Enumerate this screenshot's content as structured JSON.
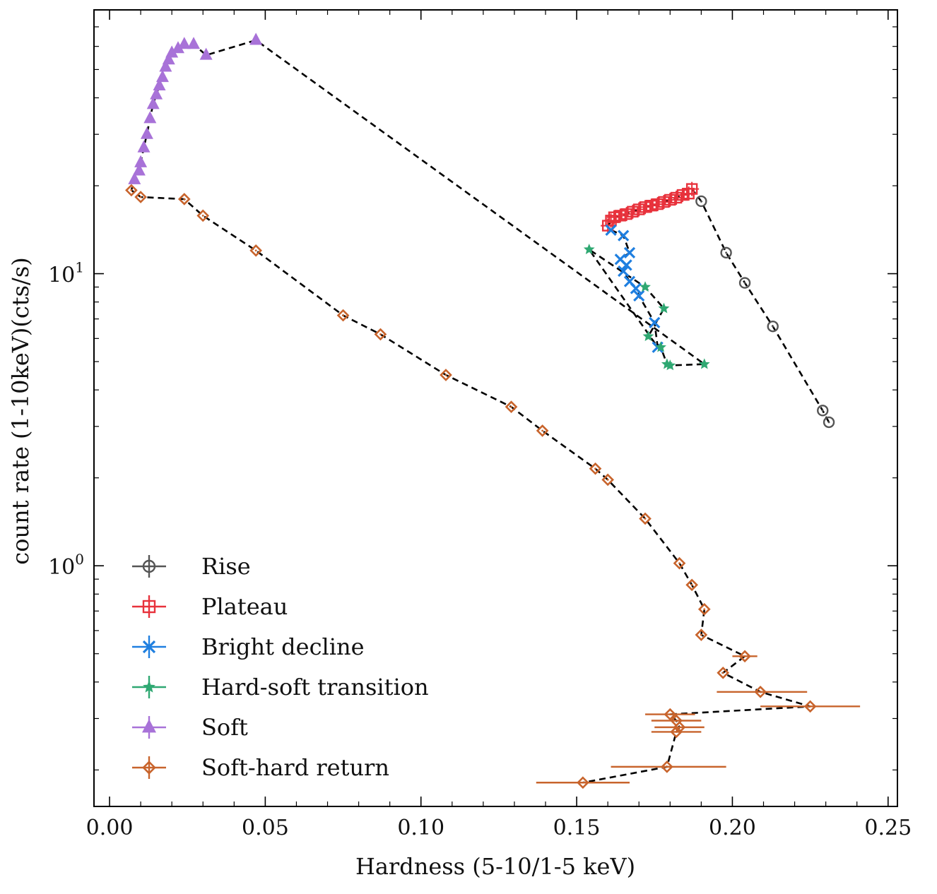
{
  "chart_data": {
    "type": "scatter",
    "title": "",
    "xlabel": "Hardness (5-10/1-5 keV)",
    "ylabel": "count rate (1-10keV)(cts/s)",
    "x_range": [
      -0.005,
      0.253
    ],
    "y_range": [
      0.15,
      80
    ],
    "y_scale": "log",
    "grid": false,
    "legend_position": "lower-left",
    "x_ticks": [
      {
        "value": 0.0,
        "label": "0.00"
      },
      {
        "value": 0.05,
        "label": "0.05"
      },
      {
        "value": 0.1,
        "label": "0.10"
      },
      {
        "value": 0.15,
        "label": "0.15"
      },
      {
        "value": 0.2,
        "label": "0.20"
      },
      {
        "value": 0.25,
        "label": "0.25"
      }
    ],
    "y_ticks": [
      {
        "value": 1,
        "base": "10",
        "exp": "0"
      },
      {
        "value": 10,
        "base": "10",
        "exp": "1"
      }
    ],
    "connecting_line": {
      "style": "dashed",
      "color": "#000000"
    },
    "series": [
      {
        "name": "Rise",
        "marker": "circle",
        "color": "#555555",
        "points": [
          {
            "x": 0.231,
            "y": 3.1
          },
          {
            "x": 0.229,
            "y": 3.4
          },
          {
            "x": 0.213,
            "y": 6.6
          },
          {
            "x": 0.204,
            "y": 9.3
          },
          {
            "x": 0.198,
            "y": 11.8
          },
          {
            "x": 0.19,
            "y": 17.7
          }
        ]
      },
      {
        "name": "Plateau",
        "marker": "square",
        "color": "#e8323c",
        "points": [
          {
            "x": 0.187,
            "y": 19.5
          },
          {
            "x": 0.186,
            "y": 18.8
          },
          {
            "x": 0.184,
            "y": 18.6
          },
          {
            "x": 0.182,
            "y": 18.2
          },
          {
            "x": 0.18,
            "y": 17.9
          },
          {
            "x": 0.178,
            "y": 17.6
          },
          {
            "x": 0.176,
            "y": 17.3
          },
          {
            "x": 0.174,
            "y": 17.1
          },
          {
            "x": 0.172,
            "y": 16.9
          },
          {
            "x": 0.17,
            "y": 16.6
          },
          {
            "x": 0.168,
            "y": 16.3
          },
          {
            "x": 0.166,
            "y": 16.0
          },
          {
            "x": 0.164,
            "y": 15.8
          },
          {
            "x": 0.162,
            "y": 15.6
          },
          {
            "x": 0.161,
            "y": 15.2
          },
          {
            "x": 0.16,
            "y": 14.6
          }
        ]
      },
      {
        "name": "Bright decline",
        "marker": "x",
        "color": "#1f7fe0",
        "points": [
          {
            "x": 0.161,
            "y": 14.1
          },
          {
            "x": 0.165,
            "y": 13.5
          },
          {
            "x": 0.167,
            "y": 11.8
          },
          {
            "x": 0.164,
            "y": 11.2
          },
          {
            "x": 0.166,
            "y": 10.7
          },
          {
            "x": 0.165,
            "y": 10.2
          },
          {
            "x": 0.167,
            "y": 9.4
          },
          {
            "x": 0.169,
            "y": 8.9
          },
          {
            "x": 0.17,
            "y": 8.4
          },
          {
            "x": 0.175,
            "y": 6.8
          },
          {
            "x": 0.176,
            "y": 5.6
          }
        ]
      },
      {
        "name": "Hard-soft transition",
        "marker": "star",
        "color": "#2fa872",
        "points": [
          {
            "x": 0.154,
            "y": 12.1
          },
          {
            "x": 0.172,
            "y": 9.0
          },
          {
            "x": 0.178,
            "y": 7.6
          },
          {
            "x": 0.173,
            "y": 6.1
          },
          {
            "x": 0.177,
            "y": 5.6
          },
          {
            "x": 0.179,
            "y": 4.9
          },
          {
            "x": 0.18,
            "y": 4.85
          },
          {
            "x": 0.191,
            "y": 4.9
          }
        ]
      },
      {
        "name": "Soft",
        "marker": "triangle",
        "color": "#a872d8",
        "points": [
          {
            "x": 0.047,
            "y": 63.0
          },
          {
            "x": 0.031,
            "y": 56.0
          },
          {
            "x": 0.027,
            "y": 61.0
          },
          {
            "x": 0.024,
            "y": 61.0
          },
          {
            "x": 0.022,
            "y": 59.0
          },
          {
            "x": 0.02,
            "y": 57.0
          },
          {
            "x": 0.019,
            "y": 54.0
          },
          {
            "x": 0.018,
            "y": 51.0
          },
          {
            "x": 0.017,
            "y": 47.0
          },
          {
            "x": 0.016,
            "y": 44.0
          },
          {
            "x": 0.015,
            "y": 41.0
          },
          {
            "x": 0.014,
            "y": 38.0
          },
          {
            "x": 0.013,
            "y": 34.0
          },
          {
            "x": 0.012,
            "y": 30.0
          },
          {
            "x": 0.011,
            "y": 27.0
          },
          {
            "x": 0.01,
            "y": 24.0
          },
          {
            "x": 0.0095,
            "y": 22.5
          },
          {
            "x": 0.008,
            "y": 21.0
          }
        ]
      },
      {
        "name": "Soft-hard return",
        "marker": "diamond",
        "color": "#c8642c",
        "points": [
          {
            "x": 0.007,
            "y": 19.3
          },
          {
            "x": 0.01,
            "y": 18.3
          },
          {
            "x": 0.024,
            "y": 18.0
          },
          {
            "x": 0.03,
            "y": 15.8
          },
          {
            "x": 0.047,
            "y": 12.0
          },
          {
            "x": 0.075,
            "y": 7.2
          },
          {
            "x": 0.087,
            "y": 6.2
          },
          {
            "x": 0.108,
            "y": 4.5
          },
          {
            "x": 0.129,
            "y": 3.5
          },
          {
            "x": 0.139,
            "y": 2.9
          },
          {
            "x": 0.156,
            "y": 2.15
          },
          {
            "x": 0.16,
            "y": 1.97
          },
          {
            "x": 0.172,
            "y": 1.45
          },
          {
            "x": 0.183,
            "y": 1.02
          },
          {
            "x": 0.187,
            "y": 0.86
          },
          {
            "x": 0.191,
            "y": 0.71
          },
          {
            "x": 0.19,
            "y": 0.58
          },
          {
            "x": 0.204,
            "y": 0.49,
            "xerr": [
              0.2,
              0.208
            ]
          },
          {
            "x": 0.197,
            "y": 0.43
          },
          {
            "x": 0.209,
            "y": 0.37,
            "xerr": [
              0.195,
              0.224
            ]
          },
          {
            "x": 0.225,
            "y": 0.33,
            "xerr": [
              0.209,
              0.241
            ]
          },
          {
            "x": 0.18,
            "y": 0.31,
            "xerr": [
              0.172,
              0.188
            ]
          },
          {
            "x": 0.182,
            "y": 0.295,
            "xerr": [
              0.174,
              0.19
            ]
          },
          {
            "x": 0.183,
            "y": 0.28,
            "xerr": [
              0.175,
              0.191
            ]
          },
          {
            "x": 0.182,
            "y": 0.27,
            "xerr": [
              0.174,
              0.19
            ]
          },
          {
            "x": 0.179,
            "y": 0.205,
            "xerr": [
              0.161,
              0.198
            ]
          },
          {
            "x": 0.152,
            "y": 0.181,
            "xerr": [
              0.137,
              0.167
            ]
          }
        ]
      }
    ]
  }
}
